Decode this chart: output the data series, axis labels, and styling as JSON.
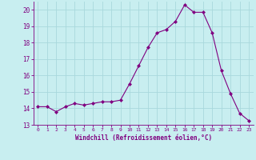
{
  "x": [
    0,
    1,
    2,
    3,
    4,
    5,
    6,
    7,
    8,
    9,
    10,
    11,
    12,
    13,
    14,
    15,
    16,
    17,
    18,
    19,
    20,
    21,
    22,
    23
  ],
  "y": [
    14.1,
    14.1,
    13.8,
    14.1,
    14.3,
    14.2,
    14.3,
    14.4,
    14.4,
    14.5,
    15.5,
    16.6,
    17.7,
    18.6,
    18.8,
    19.3,
    20.3,
    19.85,
    19.85,
    18.6,
    16.3,
    14.9,
    13.7,
    13.25
  ],
  "line_color": "#800080",
  "marker": "D",
  "marker_size": 2,
  "bg_color": "#c8eef0",
  "grid_color": "#a8d8dc",
  "xlabel": "Windchill (Refroidissement éolien,°C)",
  "xlabel_color": "#800080",
  "tick_color": "#800080",
  "ylim": [
    13,
    20.5
  ],
  "xlim": [
    -0.5,
    23.5
  ],
  "yticks": [
    13,
    14,
    15,
    16,
    17,
    18,
    19,
    20
  ],
  "xticks": [
    0,
    1,
    2,
    3,
    4,
    5,
    6,
    7,
    8,
    9,
    10,
    11,
    12,
    13,
    14,
    15,
    16,
    17,
    18,
    19,
    20,
    21,
    22,
    23
  ]
}
